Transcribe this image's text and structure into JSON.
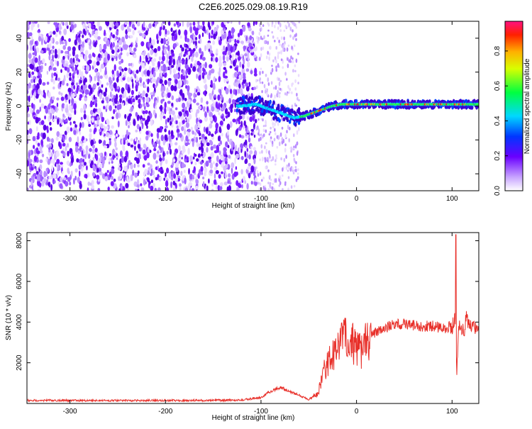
{
  "title": "C2E6.2025.029.08.19.R19",
  "chart_data": [
    {
      "type": "heatmap",
      "xlabel": "Height of straight line (km)",
      "ylabel": "Frequency (Hz)",
      "xlim": [
        -345,
        128
      ],
      "ylim": [
        -50,
        50
      ],
      "x_ticks": [
        -300,
        -200,
        -100,
        0,
        100
      ],
      "y_ticks": [
        -40,
        -20,
        0,
        20,
        40
      ],
      "colorbar": {
        "label": "Normalized spectral amplitude",
        "range": [
          0,
          0.97
        ],
        "ticks": [
          0.0,
          0.2,
          0.4,
          0.6,
          0.8
        ]
      },
      "signal_track": {
        "x": [
          -120,
          -105,
          -95,
          -85,
          -75,
          -65,
          -55,
          -45,
          -35,
          -25,
          -15,
          -5,
          5,
          20,
          40,
          60,
          80,
          100,
          110,
          120,
          128
        ],
        "y": [
          0,
          1,
          -1,
          -3,
          -5,
          -7,
          -6,
          -4,
          -2,
          0,
          1,
          1,
          1,
          1,
          1,
          1,
          1,
          1,
          1,
          1,
          1
        ]
      }
    },
    {
      "type": "line",
      "xlabel": "Height of straight line (km)",
      "ylabel": "SNR (10 * v/v)",
      "xlim": [
        -345,
        128
      ],
      "ylim": [
        0,
        8400
      ],
      "x_ticks": [
        -300,
        -200,
        -100,
        0,
        100
      ],
      "y_ticks": [
        2000,
        4000,
        6000,
        8000
      ],
      "color": "#e8302a",
      "series": [
        {
          "x": [
            -345,
            -300,
            -250,
            -200,
            -150,
            -120,
            -100,
            -90,
            -80,
            -70,
            -60,
            -50,
            -40,
            -35,
            -30,
            -25,
            -20,
            -15,
            -12,
            -10,
            -5,
            0,
            5,
            10,
            15,
            20,
            30,
            40,
            50,
            60,
            70,
            80,
            90,
            100,
            103,
            105,
            107,
            110,
            113,
            115,
            120,
            128
          ],
          "y": [
            150,
            150,
            140,
            150,
            150,
            170,
            300,
            600,
            800,
            600,
            400,
            200,
            500,
            1500,
            2000,
            2500,
            2600,
            3000,
            4000,
            2500,
            3000,
            2800,
            2600,
            3000,
            3300,
            3500,
            3700,
            3900,
            3900,
            3850,
            3800,
            3800,
            3700,
            3700,
            4200,
            1500,
            4000,
            3700,
            3600,
            4200,
            3700,
            3700
          ]
        }
      ]
    }
  ]
}
